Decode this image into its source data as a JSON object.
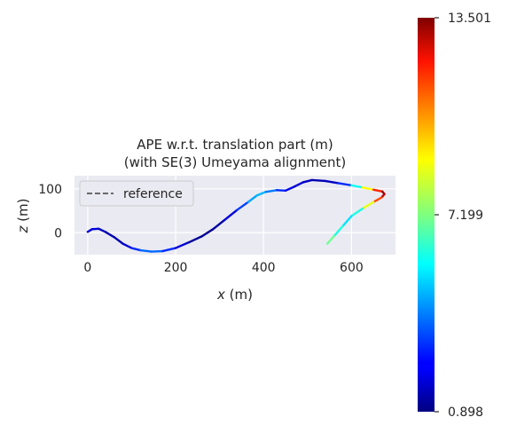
{
  "chart_data": {
    "type": "line",
    "title_line1": "APE w.r.t. translation part (m)",
    "title_line2": "(with SE(3) Umeyama alignment)",
    "xlabel_var": "x",
    "xlabel_unit": " (m)",
    "ylabel_var": "z",
    "ylabel_unit": " (m)",
    "xlim": [
      -30,
      700
    ],
    "ylim": [
      -50,
      130
    ],
    "xticks": [
      0,
      200,
      400,
      600
    ],
    "yticks": [
      0,
      100
    ],
    "grid": true,
    "legend": {
      "placement": "upper left",
      "entries": [
        "reference"
      ]
    },
    "colorbar": {
      "min": 0.898,
      "max": 13.501,
      "ticks": [
        {
          "value": 0.898,
          "label": "0.898"
        },
        {
          "value": 7.199,
          "label": "7.199"
        },
        {
          "value": 13.501,
          "label": "13.501"
        }
      ],
      "colormap": "jet"
    },
    "series": [
      {
        "style": "colored",
        "points": [
          {
            "x": 0,
            "y": 2,
            "e": 2.0
          },
          {
            "x": 10,
            "y": 8,
            "e": 2.0
          },
          {
            "x": 25,
            "y": 9,
            "e": 2.0
          },
          {
            "x": 40,
            "y": 2,
            "e": 1.5
          },
          {
            "x": 60,
            "y": -10,
            "e": 1.5
          },
          {
            "x": 80,
            "y": -25,
            "e": 1.5
          },
          {
            "x": 100,
            "y": -35,
            "e": 2.5
          },
          {
            "x": 120,
            "y": -40,
            "e": 3.5
          },
          {
            "x": 145,
            "y": -43,
            "e": 4.0
          },
          {
            "x": 170,
            "y": -42,
            "e": 3.5
          },
          {
            "x": 200,
            "y": -35,
            "e": 2.5
          },
          {
            "x": 230,
            "y": -22,
            "e": 1.5
          },
          {
            "x": 260,
            "y": -8,
            "e": 1.0
          },
          {
            "x": 285,
            "y": 8,
            "e": 1.2
          },
          {
            "x": 310,
            "y": 28,
            "e": 1.5
          },
          {
            "x": 340,
            "y": 52,
            "e": 2.5
          },
          {
            "x": 365,
            "y": 70,
            "e": 4.0
          },
          {
            "x": 385,
            "y": 85,
            "e": 5.0
          },
          {
            "x": 405,
            "y": 93,
            "e": 4.5
          },
          {
            "x": 430,
            "y": 97,
            "e": 3.5
          },
          {
            "x": 450,
            "y": 96,
            "e": 2.5
          },
          {
            "x": 470,
            "y": 105,
            "e": 2.0
          },
          {
            "x": 490,
            "y": 115,
            "e": 2.0
          },
          {
            "x": 510,
            "y": 120,
            "e": 1.5
          },
          {
            "x": 540,
            "y": 118,
            "e": 1.5
          },
          {
            "x": 570,
            "y": 113,
            "e": 2.0
          },
          {
            "x": 600,
            "y": 108,
            "e": 4.0
          },
          {
            "x": 625,
            "y": 103,
            "e": 7.5
          },
          {
            "x": 650,
            "y": 98,
            "e": 10.0
          },
          {
            "x": 670,
            "y": 94,
            "e": 13.0
          },
          {
            "x": 675,
            "y": 88,
            "e": 13.5
          },
          {
            "x": 668,
            "y": 80,
            "e": 12.0
          },
          {
            "x": 650,
            "y": 70,
            "e": 10.0
          },
          {
            "x": 625,
            "y": 55,
            "e": 7.0
          },
          {
            "x": 600,
            "y": 38,
            "e": 5.0
          },
          {
            "x": 580,
            "y": 15,
            "e": 5.5
          },
          {
            "x": 560,
            "y": -8,
            "e": 6.5
          },
          {
            "x": 545,
            "y": -25,
            "e": 7.5
          }
        ]
      }
    ]
  }
}
